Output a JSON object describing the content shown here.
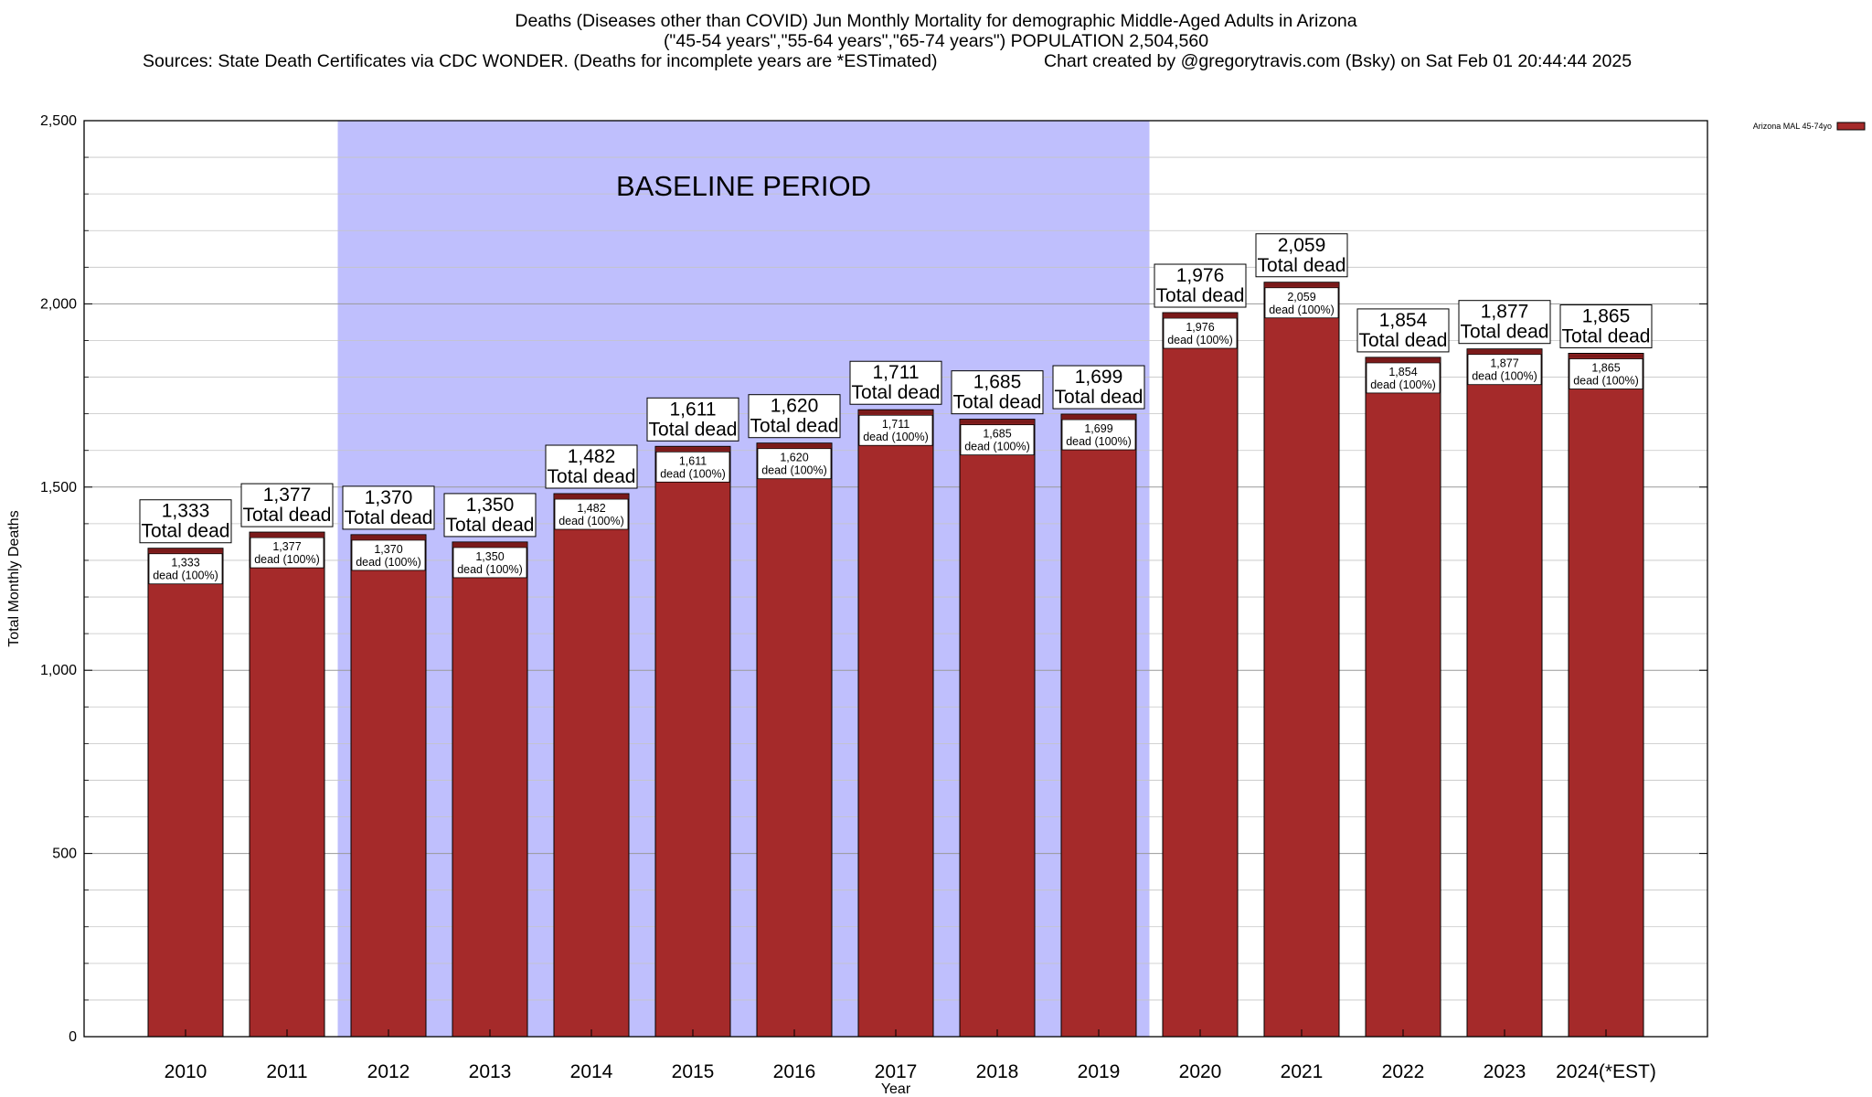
{
  "header": {
    "title_line1": "Deaths (Diseases other than COVID) Jun Monthly Mortality for demographic Middle-Aged Adults in Arizona",
    "title_line2": "(\"45-54 years\",\"55-64 years\",\"65-74 years\") POPULATION 2,504,560",
    "sources": "Sources: State Death Certificates via CDC WONDER. (Deaths for incomplete years are *ESTimated)",
    "credit": "Chart created by @gregorytravis.com (Bsky) on Sat Feb 01 20:44:44 2025"
  },
  "chart_data": {
    "type": "bar",
    "categories": [
      "2010",
      "2011",
      "2012",
      "2013",
      "2014",
      "2015",
      "2016",
      "2017",
      "2018",
      "2019",
      "2020",
      "2021",
      "2022",
      "2023",
      "2024(*EST)"
    ],
    "series": [
      {
        "name": "Arizona MAL 45-74yo",
        "values": [
          1333,
          1377,
          1370,
          1350,
          1482,
          1611,
          1620,
          1711,
          1685,
          1699,
          1976,
          2059,
          1854,
          1877,
          1865
        ],
        "color": "#a52a2a"
      }
    ],
    "top_labels": [
      "1,333",
      "1,377",
      "1,370",
      "1,350",
      "1,482",
      "1,611",
      "1,620",
      "1,711",
      "1,685",
      "1,699",
      "1,976",
      "2,059",
      "1,854",
      "1,877",
      "1,865"
    ],
    "total_dead_text": "Total dead",
    "inner_label_suffix": "dead (100%)",
    "xlabel": "Year",
    "ylabel": "Total Monthly Deaths",
    "ylim": [
      0,
      2500
    ],
    "yticks": [
      0,
      500,
      1000,
      1500,
      2000,
      2500
    ],
    "ytick_labels": [
      "0",
      "500",
      "1,000",
      "1,500",
      "2,000",
      "2,500"
    ],
    "grid": true,
    "legend_position": "top-right",
    "baseline_period": {
      "start": "2012",
      "end": "2019",
      "label": "BASELINE PERIOD",
      "color": "#bfbffd"
    },
    "bar_color": "#a52a2a",
    "bar_cap_color": "#7a1a1a"
  }
}
